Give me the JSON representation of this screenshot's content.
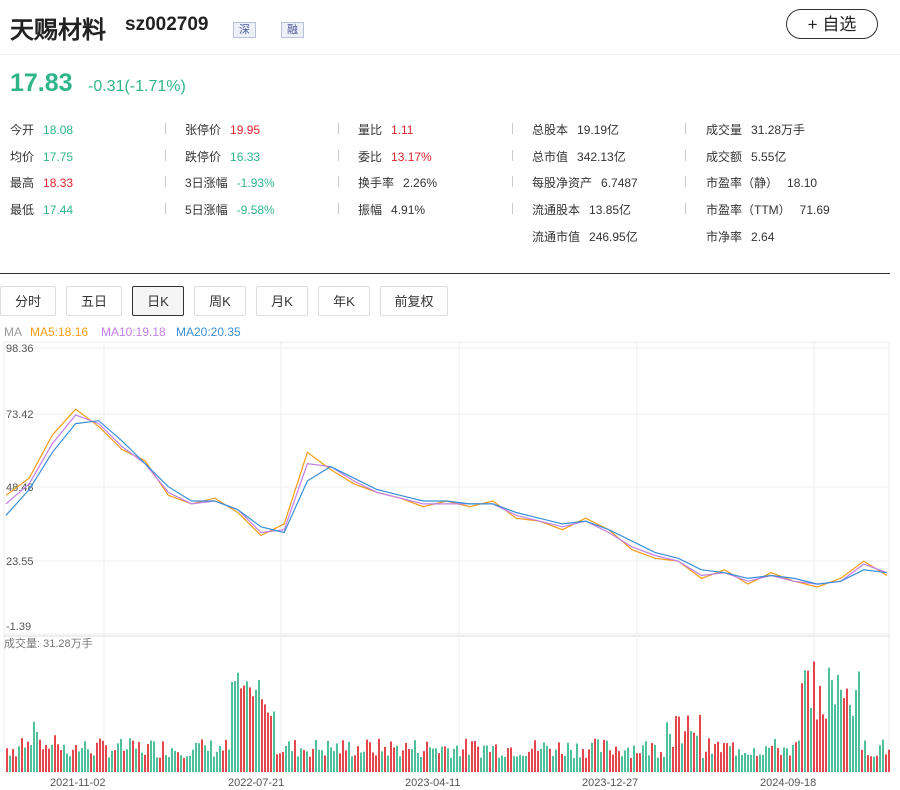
{
  "header": {
    "name": "天赐材料",
    "code": "sz002709",
    "tags": [
      "深",
      "融"
    ],
    "watch_label": "+ 自选"
  },
  "quote": {
    "price": "17.83",
    "change": "-0.31(-1.71%)",
    "stats": [
      {
        "label": "今开",
        "value": "18.08",
        "color": "dn"
      },
      {
        "label": "张停价",
        "value": "19.95",
        "color": "up"
      },
      {
        "label": "量比",
        "value": "1.11",
        "color": "up"
      },
      {
        "label": "总股本",
        "value": "19.19亿",
        "color": ""
      },
      {
        "label": "成交量",
        "value": "31.28万手",
        "color": ""
      },
      {
        "label": "均价",
        "value": "17.75",
        "color": "dn"
      },
      {
        "label": "跌停价",
        "value": "16.33",
        "color": "dn"
      },
      {
        "label": "委比",
        "value": "13.17%",
        "color": "up"
      },
      {
        "label": "总市值",
        "value": "342.13亿",
        "color": ""
      },
      {
        "label": "成交额",
        "value": "5.55亿",
        "color": ""
      },
      {
        "label": "最高",
        "value": "18.33",
        "color": "up"
      },
      {
        "label": "3日涨幅",
        "value": "-1.93%",
        "color": "dn"
      },
      {
        "label": "换手率",
        "value": "2.26%",
        "color": ""
      },
      {
        "label": "每股净资产",
        "value": "6.7487",
        "color": ""
      },
      {
        "label": "市盈率（静）",
        "value": "18.10",
        "color": ""
      },
      {
        "label": "最低",
        "value": "17.44",
        "color": "dn"
      },
      {
        "label": "5日涨幅",
        "value": "-9.58%",
        "color": "dn"
      },
      {
        "label": "振幅",
        "value": "4.91%",
        "color": ""
      },
      {
        "label": "流通股本",
        "value": "13.85亿",
        "color": ""
      },
      {
        "label": "市盈率（TTM）",
        "value": "71.69",
        "color": ""
      },
      {
        "label": "流通市值",
        "value": "246.95亿",
        "color": ""
      },
      {
        "label": "市净率",
        "value": "2.64",
        "color": ""
      }
    ]
  },
  "tabs": [
    "分时",
    "五日",
    "日K",
    "周K",
    "月K",
    "年K",
    "前复权"
  ],
  "active_tab": "日K",
  "ma": {
    "label": "MA",
    "ma5": "MA5:18.16",
    "ma10": "MA10:19.18",
    "ma20": "MA20:20.35"
  },
  "colors": {
    "up": "#e0252e",
    "down": "#2fb58a",
    "ma5": "#f39c12",
    "ma10": "#c27ee8",
    "ma20": "#3a8fd6"
  },
  "volume_label": "成交量: 31.28万手",
  "chart_data": {
    "type": "line",
    "ylabels": [
      "98.36",
      "73.42",
      "48.48",
      "23.55",
      "-1.39"
    ],
    "ylim": [
      -1.39,
      98.36
    ],
    "xlabels": [
      "2021-11-02",
      "2022-07-21",
      "2023-04-11",
      "2023-12-27",
      "2024-09-18"
    ],
    "series": [
      {
        "name": "MA5",
        "values": [
          47,
          53,
          68,
          77,
          71,
          63,
          59,
          47,
          44,
          46,
          41,
          33,
          37,
          62,
          56,
          51,
          48,
          46,
          43,
          45,
          43,
          45,
          39,
          38,
          35,
          39,
          35,
          28,
          25,
          24,
          18,
          21,
          16,
          20,
          17,
          15,
          18,
          24,
          19
        ]
      },
      {
        "name": "MA10",
        "values": [
          44,
          51,
          65,
          75,
          72,
          64,
          58,
          48,
          44,
          45,
          42,
          34,
          35,
          58,
          57,
          52,
          48,
          46,
          44,
          44,
          44,
          44,
          40,
          38,
          36,
          38,
          34,
          29,
          26,
          24,
          19,
          20,
          17,
          19,
          17,
          16,
          17,
          23,
          20
        ]
      },
      {
        "name": "MA20",
        "values": [
          40,
          49,
          62,
          72,
          73,
          66,
          58,
          50,
          45,
          45,
          42,
          36,
          34,
          52,
          57,
          53,
          49,
          47,
          45,
          45,
          44,
          44,
          41,
          39,
          37,
          38,
          35,
          31,
          27,
          25,
          21,
          20,
          18,
          19,
          18,
          16,
          17,
          21,
          20
        ]
      }
    ]
  }
}
